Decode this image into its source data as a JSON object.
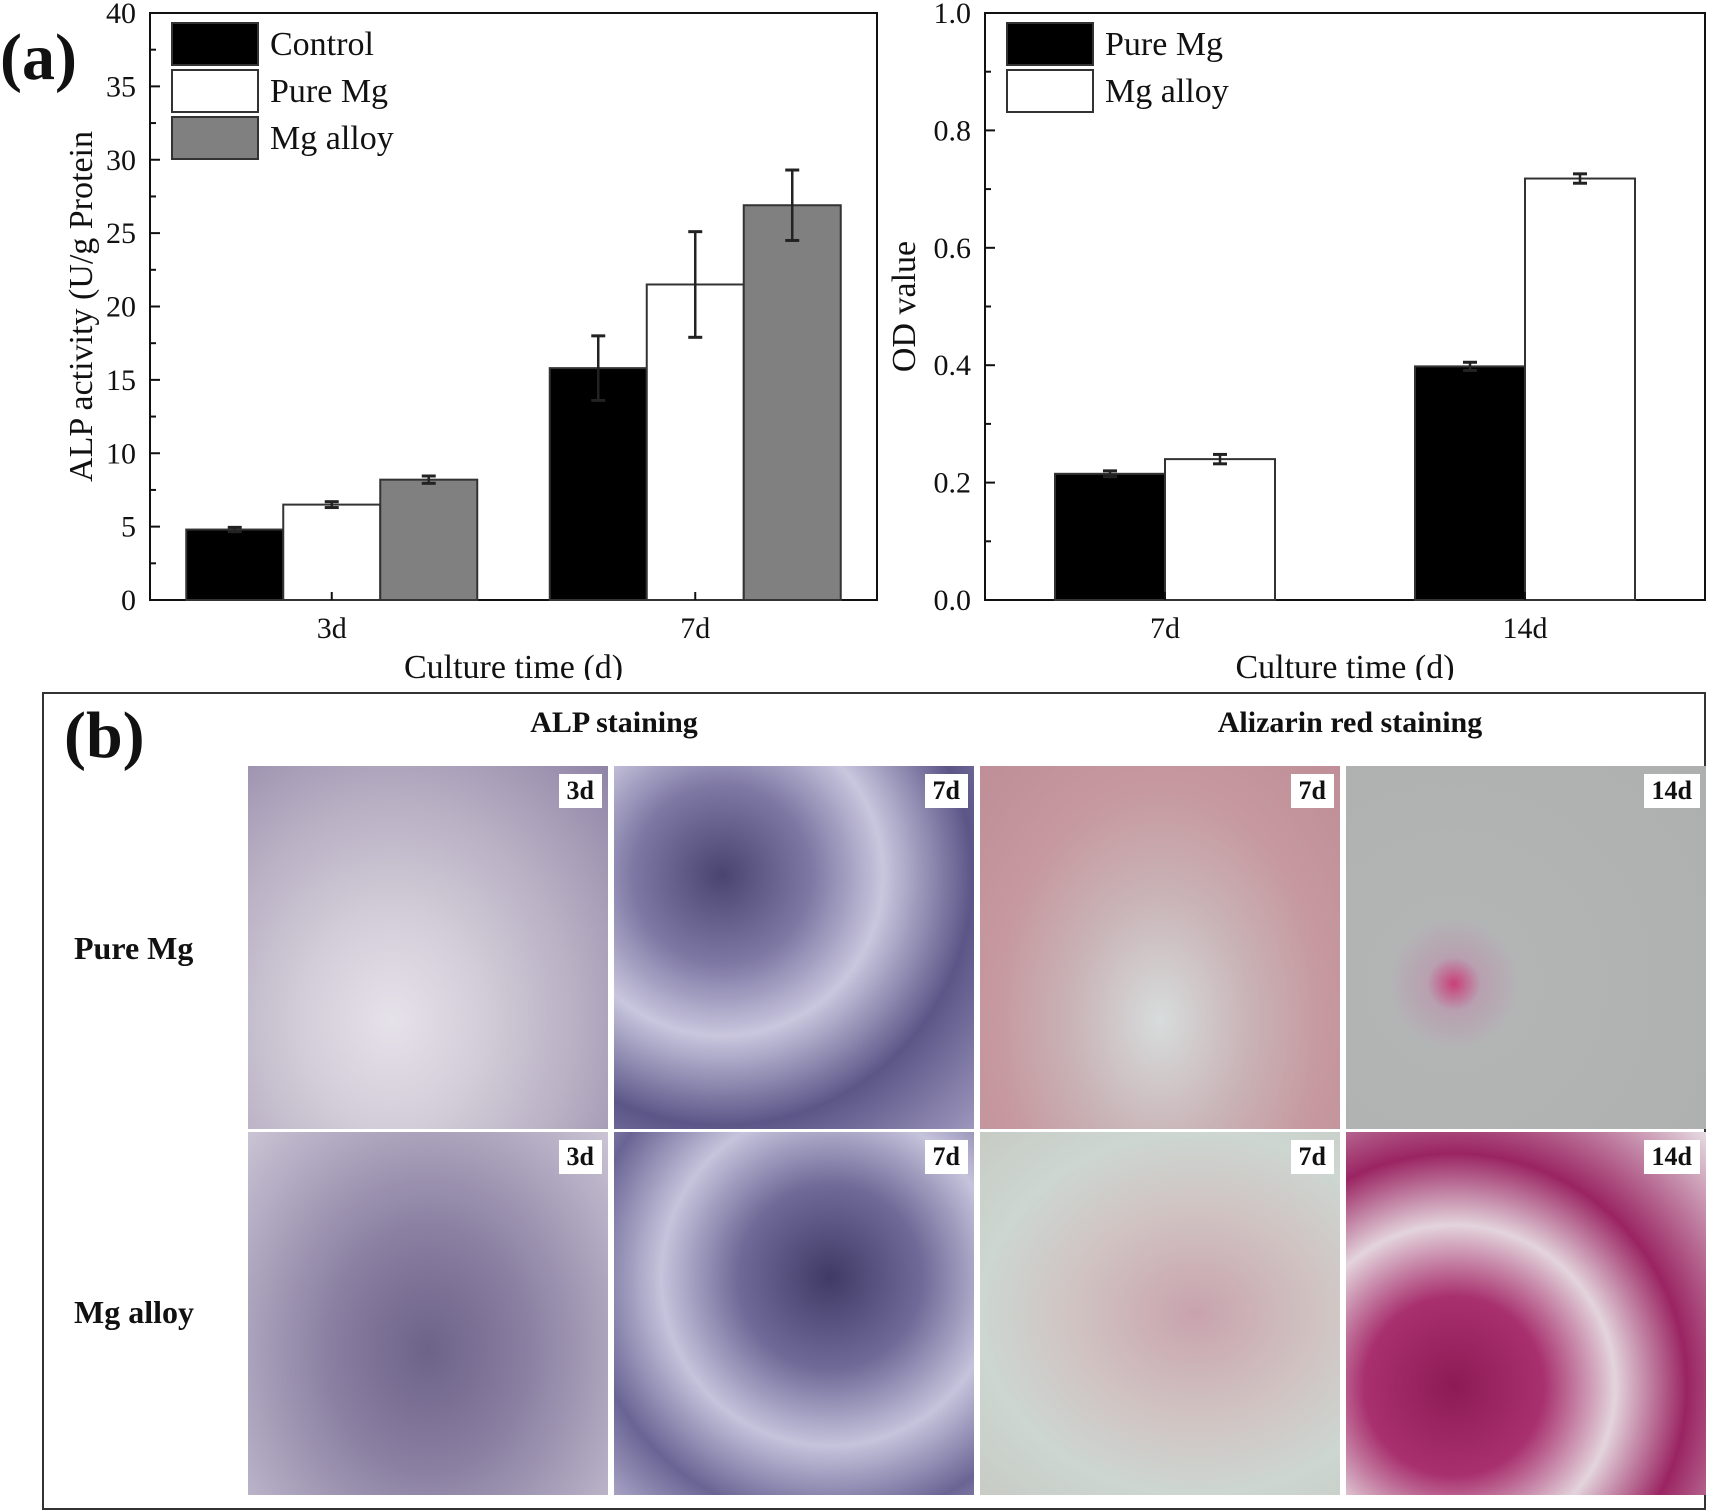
{
  "panel_a_label": "(a)",
  "panel_b_label": "(b)",
  "chart_data": [
    {
      "type": "bar",
      "title": "",
      "xlabel": "Culture time (d)",
      "ylabel": "ALP activity (U/g Protein",
      "categories": [
        "3d",
        "7d"
      ],
      "ylim": [
        0,
        40
      ],
      "yticks": [
        0,
        5,
        10,
        15,
        20,
        25,
        30,
        35,
        40
      ],
      "grid": false,
      "legend_position": "upper-left",
      "series": [
        {
          "name": "Control",
          "color": "#000000",
          "values": [
            4.8,
            15.8
          ],
          "errors": [
            0.15,
            2.2
          ]
        },
        {
          "name": "Pure Mg",
          "color": "#ffffff",
          "values": [
            6.5,
            21.5
          ],
          "errors": [
            0.2,
            3.6
          ]
        },
        {
          "name": "Mg alloy",
          "color": "#808080",
          "values": [
            8.2,
            26.9
          ],
          "errors": [
            0.25,
            2.4
          ]
        }
      ]
    },
    {
      "type": "bar",
      "title": "",
      "xlabel": "Culture time (d)",
      "ylabel": "OD value",
      "categories": [
        "7d",
        "14d"
      ],
      "ylim": [
        0.0,
        1.0
      ],
      "yticks": [
        "0.0",
        "0.2",
        "0.4",
        "0.6",
        "0.8",
        "1.0"
      ],
      "grid": false,
      "legend_position": "upper-left",
      "series": [
        {
          "name": "Pure Mg",
          "color": "#000000",
          "values": [
            0.215,
            0.398
          ],
          "errors": [
            0.005,
            0.007
          ]
        },
        {
          "name": "Mg alloy",
          "color": "#ffffff",
          "values": [
            0.24,
            0.718
          ],
          "errors": [
            0.008,
            0.008
          ]
        }
      ]
    }
  ],
  "staining": {
    "column_headers": [
      "ALP staining",
      "Alizarin red staining"
    ],
    "row_labels": [
      "Pure Mg",
      "Mg alloy"
    ],
    "panels": [
      {
        "row": "Pure Mg",
        "stain": "ALP",
        "day": "3d"
      },
      {
        "row": "Pure Mg",
        "stain": "ALP",
        "day": "7d"
      },
      {
        "row": "Pure Mg",
        "stain": "Alizarin red",
        "day": "7d"
      },
      {
        "row": "Pure Mg",
        "stain": "Alizarin red",
        "day": "14d"
      },
      {
        "row": "Mg alloy",
        "stain": "ALP",
        "day": "3d"
      },
      {
        "row": "Mg alloy",
        "stain": "ALP",
        "day": "7d"
      },
      {
        "row": "Mg alloy",
        "stain": "Alizarin red",
        "day": "7d"
      },
      {
        "row": "Mg alloy",
        "stain": "Alizarin red",
        "day": "14d"
      }
    ]
  }
}
